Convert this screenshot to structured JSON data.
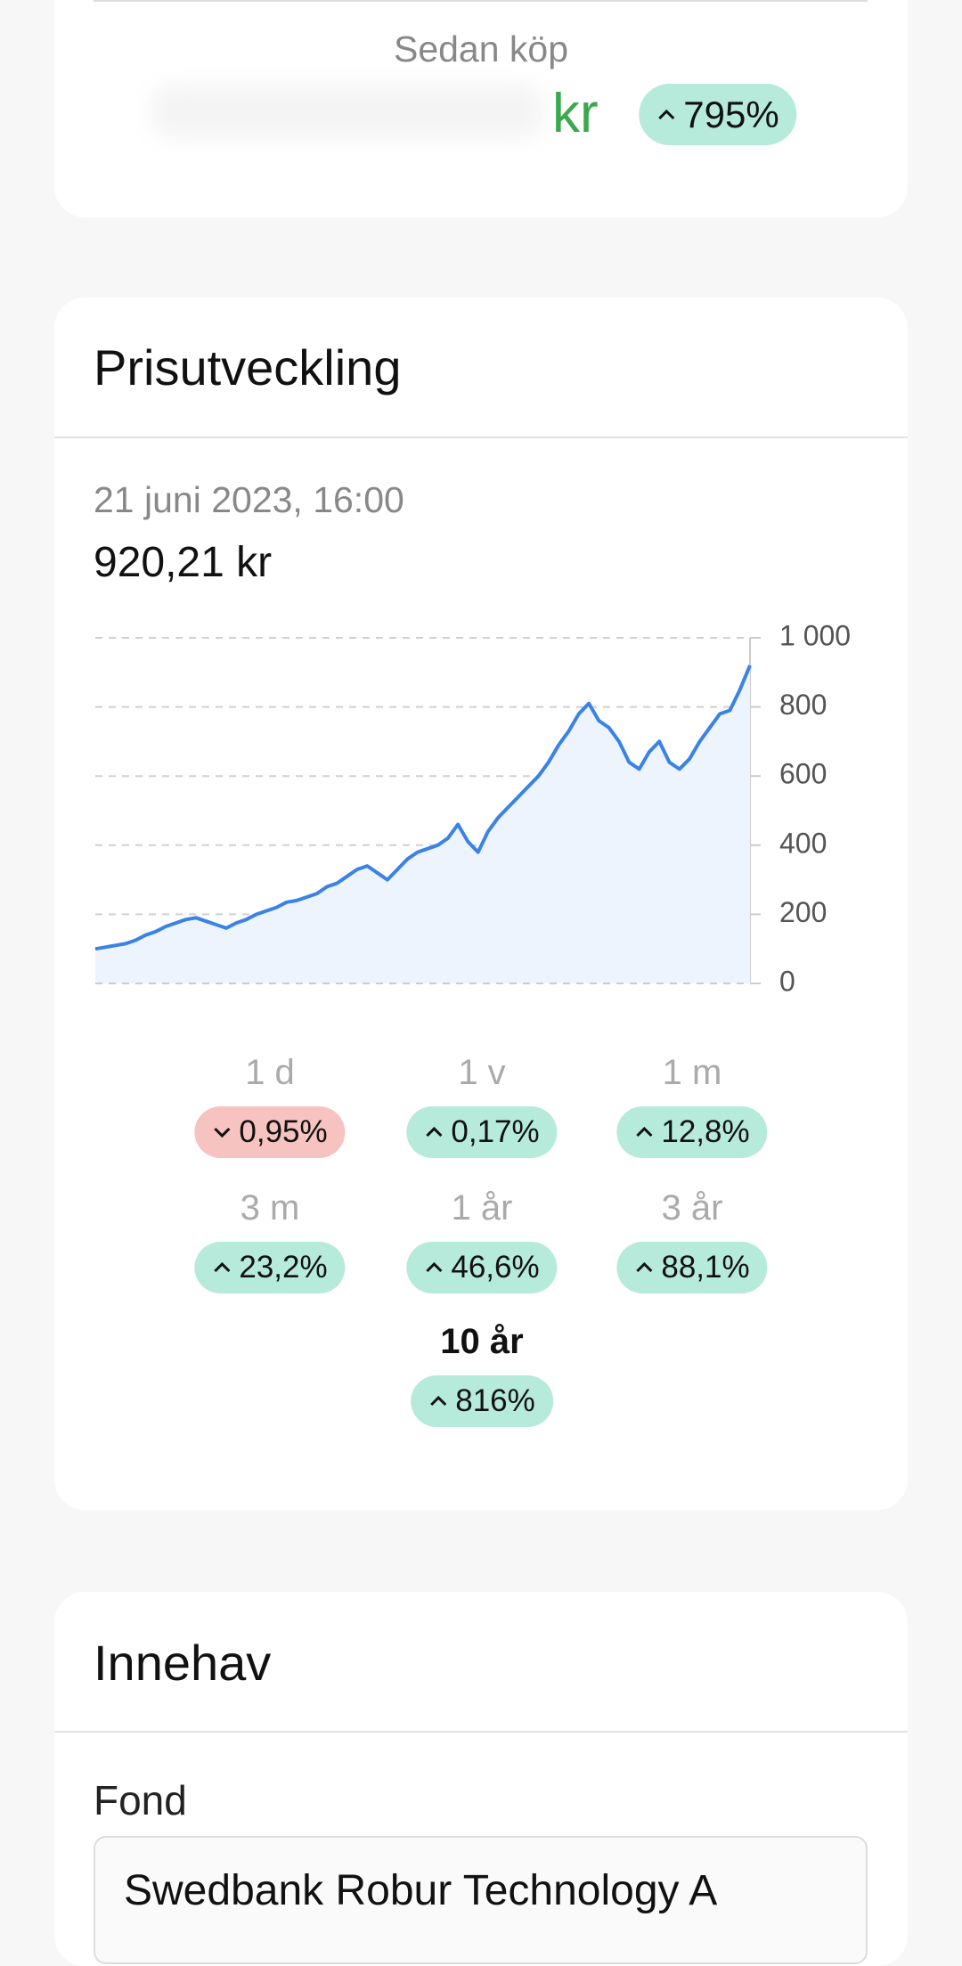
{
  "summary": {
    "label": "Sedan köp",
    "currency": "kr",
    "change": "795%",
    "direction": "up"
  },
  "price_card": {
    "title": "Prisutveckling",
    "date": "21 juni 2023, 16:00",
    "price": "920,21 kr",
    "chart_data": {
      "type": "area",
      "color": "#3b82e6",
      "fill": "#eef4fd",
      "grid": true,
      "ylim": [
        0,
        1000
      ],
      "yticks": [
        0,
        200,
        400,
        600,
        800,
        {
          "value": 1000,
          "label": "1 000"
        }
      ],
      "values": [
        100,
        105,
        110,
        115,
        125,
        140,
        150,
        165,
        175,
        185,
        190,
        180,
        170,
        160,
        175,
        185,
        200,
        210,
        220,
        235,
        240,
        250,
        260,
        280,
        290,
        310,
        330,
        340,
        320,
        300,
        330,
        360,
        380,
        390,
        400,
        420,
        460,
        410,
        380,
        440,
        480,
        510,
        540,
        570,
        600,
        640,
        690,
        730,
        780,
        810,
        760,
        740,
        700,
        640,
        620,
        670,
        700,
        640,
        620,
        650,
        700,
        740,
        780,
        790,
        850,
        920
      ]
    },
    "periods": [
      {
        "label": "1 d",
        "change": "0,95%",
        "direction": "down"
      },
      {
        "label": "1 v",
        "change": "0,17%",
        "direction": "up"
      },
      {
        "label": "1 m",
        "change": "12,8%",
        "direction": "up"
      },
      {
        "label": "3 m",
        "change": "23,2%",
        "direction": "up"
      },
      {
        "label": "1 år",
        "change": "46,6%",
        "direction": "up"
      },
      {
        "label": "3 år",
        "change": "88,1%",
        "direction": "up"
      },
      {
        "label": "10 år",
        "change": "816%",
        "direction": "up",
        "selected": true
      }
    ]
  },
  "holdings_card": {
    "title": "Innehav",
    "field_label": "Fond",
    "field_value": "Swedbank Robur Technology A"
  }
}
